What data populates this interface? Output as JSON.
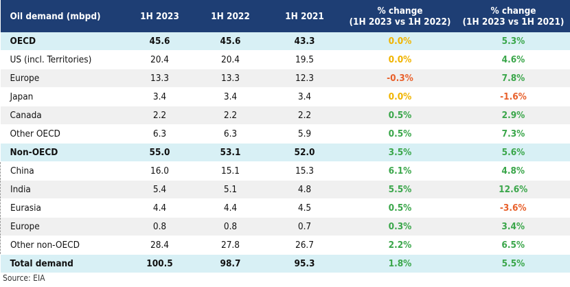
{
  "header": {
    "col0": "Oil demand (mbpd)",
    "col1": "1H 2023",
    "col2": "1H 2022",
    "col3": "1H 2021",
    "col4_line1": "% change",
    "col4_line2": "(1H 2023 vs 1H 2022)",
    "col5_line1": "% change",
    "col5_line2": "(1H 2023 vs 1H 2021)"
  },
  "rows": [
    {
      "label": "OECD",
      "v2023": "45.6",
      "v2022": "45.6",
      "v2021": "43.3",
      "chg22": "0.0%",
      "chg21": "5.3%"
    },
    {
      "label": "US (incl. Territories)",
      "v2023": "20.4",
      "v2022": "20.4",
      "v2021": "19.5",
      "chg22": "0.0%",
      "chg21": "4.6%"
    },
    {
      "label": "Europe",
      "v2023": "13.3",
      "v2022": "13.3",
      "v2021": "12.3",
      "chg22": "-0.3%",
      "chg21": "7.8%"
    },
    {
      "label": "Japan",
      "v2023": "3.4",
      "v2022": "3.4",
      "v2021": "3.4",
      "chg22": "0.0%",
      "chg21": "-1.6%"
    },
    {
      "label": "Canada",
      "v2023": "2.2",
      "v2022": "2.2",
      "v2021": "2.2",
      "chg22": "0.5%",
      "chg21": "2.9%"
    },
    {
      "label": "Other OECD",
      "v2023": "6.3",
      "v2022": "6.3",
      "v2021": "5.9",
      "chg22": "0.5%",
      "chg21": "7.3%"
    },
    {
      "label": "Non-OECD",
      "v2023": "55.0",
      "v2022": "53.1",
      "v2021": "52.0",
      "chg22": "3.5%",
      "chg21": "5.6%"
    },
    {
      "label": "China",
      "v2023": "16.0",
      "v2022": "15.1",
      "v2021": "15.3",
      "chg22": "6.1%",
      "chg21": "4.8%"
    },
    {
      "label": "India",
      "v2023": "5.4",
      "v2022": "5.1",
      "v2021": "4.8",
      "chg22": "5.5%",
      "chg21": "12.6%"
    },
    {
      "label": "Eurasia",
      "v2023": "4.4",
      "v2022": "4.4",
      "v2021": "4.5",
      "chg22": "0.5%",
      "chg21": "-3.6%"
    },
    {
      "label": "Europe",
      "v2023": "0.8",
      "v2022": "0.8",
      "v2021": "0.7",
      "chg22": "0.3%",
      "chg21": "3.4%"
    },
    {
      "label": "Other non-OECD",
      "v2023": "28.4",
      "v2022": "27.8",
      "v2021": "26.7",
      "chg22": "2.2%",
      "chg21": "6.5%"
    },
    {
      "label": "Total demand",
      "v2023": "100.5",
      "v2022": "98.7",
      "v2021": "95.3",
      "chg22": "1.8%",
      "chg21": "5.5%"
    }
  ],
  "source": "Source: EIA",
  "colors": {
    "header_bg": "#1e3e74",
    "highlight_bg": "#d8f0f5",
    "positive": "#3aa64a",
    "negative": "#e8602b",
    "zero": "#f0b400"
  }
}
